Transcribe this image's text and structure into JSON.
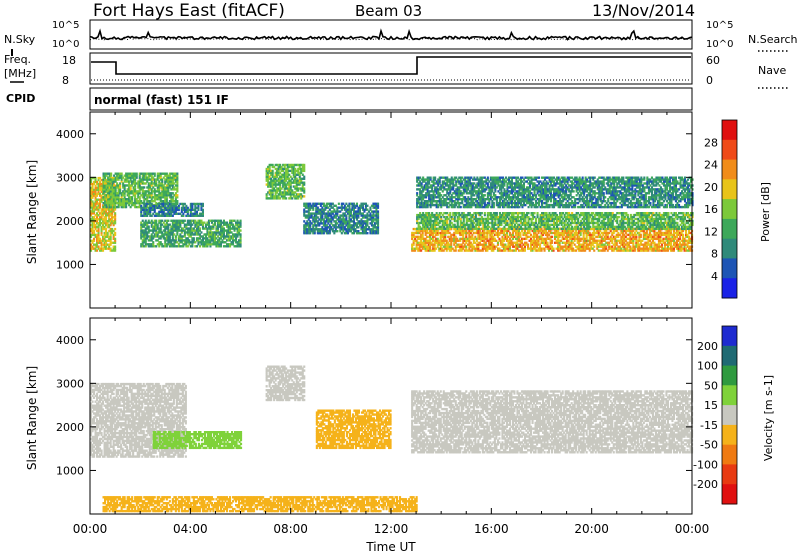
{
  "header": {
    "radar_title": "Fort Hays East (fitACF)",
    "beam": "Beam 03",
    "date": "13/Nov/2014"
  },
  "side_labels": {
    "nsky": "N.Sky",
    "nsearch": "N.Search",
    "freq": "Freq.",
    "freq_unit": "[MHz]",
    "nave": "Nave",
    "cpid": "CPID",
    "mode": "normal (fast) 151 IF"
  },
  "noise_ticks": {
    "top": "10^5",
    "bottom": "10^0"
  },
  "freq_ticks": {
    "left": [
      "18",
      "8"
    ],
    "right": [
      "60",
      "0"
    ]
  },
  "colors": {
    "power": [
      "#1a22e6",
      "#1d55b5",
      "#2f8a7a",
      "#3da85a",
      "#7cc93a",
      "#e8c41a",
      "#f08c1a",
      "#ef4a18",
      "#e01010"
    ],
    "velocity": [
      "#1e2bd0",
      "#1f6a73",
      "#2f9a3f",
      "#7fd23a",
      "#c8c8c0",
      "#f5b21a",
      "#ef7a12",
      "#e83a12",
      "#e01010"
    ],
    "line": "#000000"
  },
  "chart_data": [
    {
      "type": "heatmap",
      "name": "power",
      "xlabel": "",
      "ylabel": "Slant Range [km]",
      "xlim": [
        "00:00",
        "00:00"
      ],
      "ylim": [
        0,
        4500
      ],
      "y_ticks": [
        "4000",
        "3000",
        "2000",
        "1000"
      ],
      "y_tick_values": [
        4000,
        3000,
        2000,
        1000
      ],
      "colorbar": {
        "label": "Power [dB]",
        "ticks": [
          "28",
          "24",
          "20",
          "16",
          "12",
          "8",
          "4"
        ],
        "tick_values": [
          28,
          24,
          20,
          16,
          12,
          8,
          4
        ],
        "range": [
          0,
          30
        ]
      },
      "bands": [
        {
          "t0": 0.0,
          "t1": 1.0,
          "r0": 1300,
          "r1": 3000,
          "v": 18
        },
        {
          "t0": 0.5,
          "t1": 3.5,
          "r0": 2300,
          "r1": 3100,
          "v": 13
        },
        {
          "t0": 2.0,
          "t1": 6.0,
          "r0": 1400,
          "r1": 2000,
          "v": 11
        },
        {
          "t0": 2.0,
          "t1": 4.5,
          "r0": 2100,
          "r1": 2400,
          "v": 8
        },
        {
          "t0": 7.0,
          "t1": 8.5,
          "r0": 2500,
          "r1": 3300,
          "v": 13
        },
        {
          "t0": 8.5,
          "t1": 11.5,
          "r0": 1700,
          "r1": 2400,
          "v": 8
        },
        {
          "t0": 12.8,
          "t1": 24.0,
          "r0": 1300,
          "r1": 1800,
          "v": 20
        },
        {
          "t0": 13.0,
          "t1": 24.0,
          "r0": 1800,
          "r1": 2200,
          "v": 13
        },
        {
          "t0": 13.0,
          "t1": 24.0,
          "r0": 2300,
          "r1": 3000,
          "v": 9
        }
      ]
    },
    {
      "type": "heatmap",
      "name": "velocity",
      "xlabel": "Time UT",
      "ylabel": "Slant Range [km]",
      "x_ticks": [
        "00:00",
        "04:00",
        "08:00",
        "12:00",
        "16:00",
        "20:00",
        "00:00"
      ],
      "x_tick_hours": [
        0,
        4,
        8,
        12,
        16,
        20,
        24
      ],
      "ylim": [
        0,
        4500
      ],
      "y_ticks": [
        "4000",
        "3000",
        "2000",
        "1000"
      ],
      "y_tick_values": [
        4000,
        3000,
        2000,
        1000
      ],
      "colorbar": {
        "label": "Velocity [m s-1]",
        "ticks": [
          "200",
          "100",
          "50",
          "15",
          "-15",
          "-50",
          "-100",
          "-200"
        ],
        "tick_values": [
          200,
          100,
          50,
          15,
          -15,
          -50,
          -100,
          -200
        ],
        "range": [
          -250,
          250
        ]
      },
      "bands": [
        {
          "t0": 0.0,
          "t1": 3.8,
          "r0": 1300,
          "r1": 3000,
          "v": 0
        },
        {
          "t0": 2.5,
          "t1": 6.0,
          "r0": 1500,
          "r1": 1900,
          "v": 60
        },
        {
          "t0": 7.0,
          "t1": 8.5,
          "r0": 2600,
          "r1": 3400,
          "v": 0
        },
        {
          "t0": 9.0,
          "t1": 12.0,
          "r0": 1500,
          "r1": 2400,
          "v": -60
        },
        {
          "t0": 12.8,
          "t1": 24.0,
          "r0": 1400,
          "r1": 2800,
          "v": 0
        },
        {
          "t0": 0.5,
          "t1": 13.0,
          "r0": 50,
          "r1": 400,
          "v": -60
        }
      ]
    }
  ]
}
